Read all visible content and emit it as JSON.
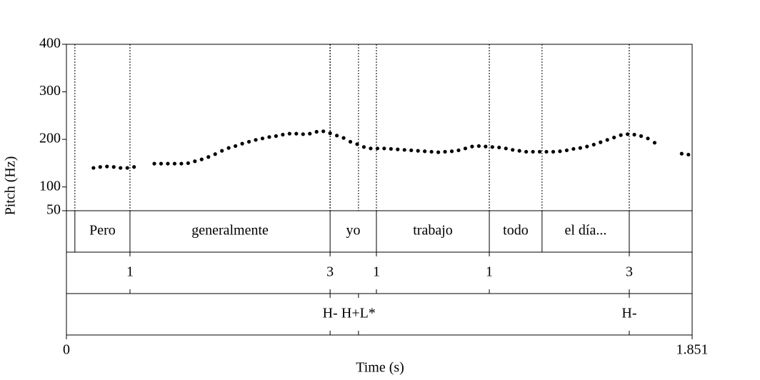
{
  "chart_data": {
    "type": "pitch",
    "ylabel": "Pitch (Hz)",
    "xlabel": "Time (s)",
    "xlim": [
      0,
      1.851
    ],
    "xticks": [
      0,
      1.851
    ],
    "ylim": [
      50,
      400
    ],
    "yticks": [
      50,
      100,
      200,
      300,
      400
    ],
    "color": "#000000",
    "x": [
      0.08,
      0.1,
      0.12,
      0.14,
      0.16,
      0.18,
      0.2,
      0.23,
      0.26,
      0.28,
      0.3,
      0.32,
      0.34,
      0.36,
      0.38,
      0.4,
      0.42,
      0.44,
      0.46,
      0.48,
      0.5,
      0.52,
      0.54,
      0.56,
      0.58,
      0.6,
      0.62,
      0.64,
      0.66,
      0.68,
      0.7,
      0.72,
      0.74,
      0.76,
      0.78,
      0.8,
      0.82,
      0.84,
      0.86,
      0.88,
      0.9,
      0.92,
      0.94,
      0.96,
      0.98,
      1.0,
      1.02,
      1.04,
      1.06,
      1.08,
      1.1,
      1.12,
      1.14,
      1.16,
      1.18,
      1.2,
      1.22,
      1.24,
      1.26,
      1.28,
      1.3,
      1.32,
      1.34,
      1.36,
      1.38,
      1.4,
      1.42,
      1.44,
      1.46,
      1.48,
      1.5,
      1.52,
      1.54,
      1.56,
      1.58,
      1.6,
      1.62,
      1.64,
      1.66,
      1.68,
      1.7,
      1.72,
      1.74,
      1.78,
      1.82,
      1.84
    ],
    "values": [
      140,
      142,
      143,
      142,
      140,
      140,
      142,
      null,
      149,
      149,
      149,
      149,
      149,
      150,
      154,
      158,
      163,
      169,
      176,
      182,
      186,
      191,
      195,
      199,
      202,
      205,
      207,
      210,
      212,
      212,
      211,
      212,
      216,
      217,
      213,
      208,
      203,
      195,
      190,
      184,
      181,
      181,
      181,
      180,
      179,
      178,
      177,
      176,
      175,
      174,
      173,
      174,
      175,
      177,
      181,
      185,
      186,
      185,
      184,
      183,
      181,
      178,
      176,
      174,
      174,
      174,
      174,
      174,
      175,
      177,
      180,
      182,
      185,
      189,
      194,
      199,
      204,
      209,
      211,
      210,
      207,
      202,
      193,
      null,
      170,
      168
    ],
    "words": {
      "boundaries": [
        0.025,
        0.188,
        0.78,
        0.917,
        1.251,
        1.407,
        1.665
      ],
      "labels": [
        "Pero",
        "generalmente",
        "yo",
        "trabajo",
        "todo",
        "el día..."
      ]
    },
    "breaks": {
      "times": [
        0.188,
        0.78,
        0.917,
        1.251,
        1.665
      ],
      "labels": [
        "1",
        "3",
        "1",
        "1",
        "3"
      ]
    },
    "tones": {
      "times": [
        0.78,
        0.864,
        1.665
      ],
      "labels": [
        "H-",
        "H+L*",
        "H-"
      ]
    }
  }
}
